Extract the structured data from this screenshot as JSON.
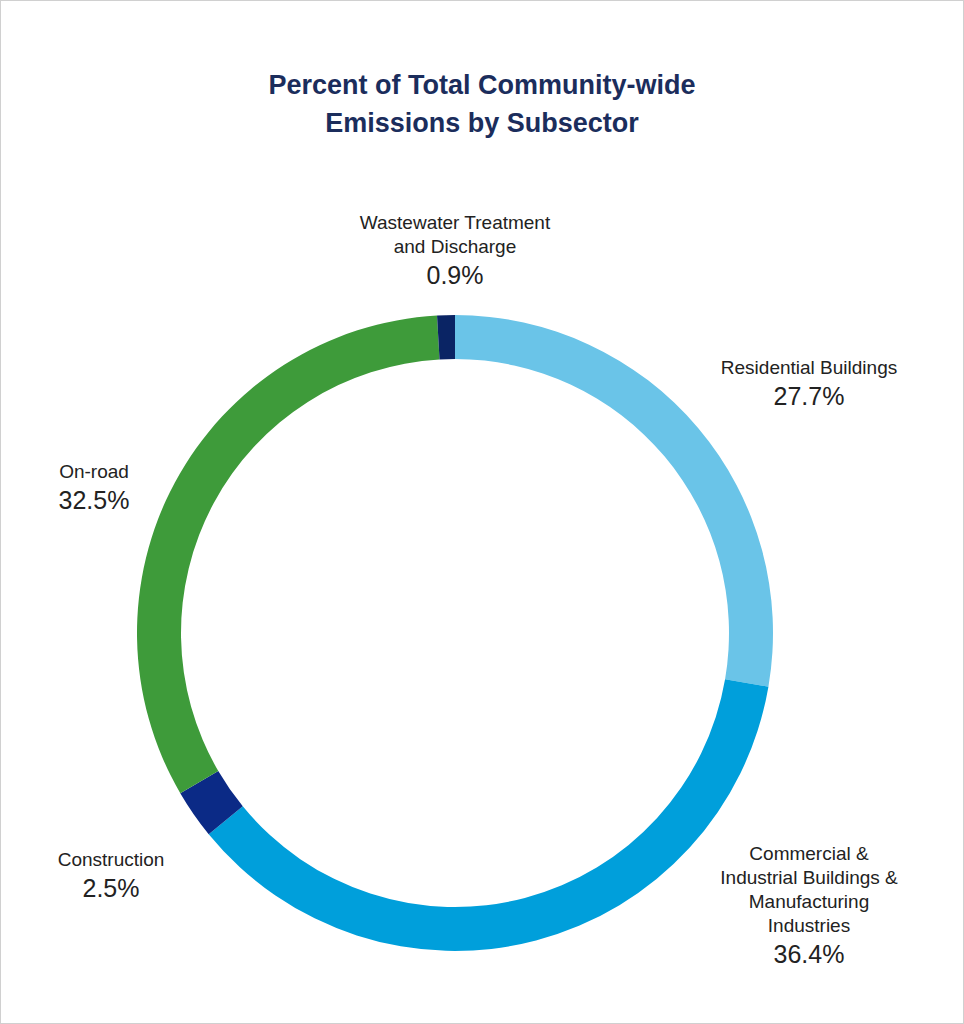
{
  "chart_data": {
    "type": "pie",
    "title": "Percent of Total Community-wide\nEmissions by Subsector",
    "categories": [
      "Residential Buildings",
      "Commercial &\nIndustrial Buildings &\nManufacturing\nIndustries",
      "Construction",
      "On-road",
      "Wastewater Treatment\nand Discharge"
    ],
    "values": [
      27.7,
      36.4,
      2.5,
      32.5,
      0.9
    ],
    "value_labels": [
      "27.7%",
      "36.4%",
      "2.5%",
      "32.5%",
      "0.9%"
    ],
    "colors": [
      "#6ac4e8",
      "#009fdb",
      "#0b2a86",
      "#3e9b3a",
      "#0a2464"
    ],
    "data_labels": true
  }
}
